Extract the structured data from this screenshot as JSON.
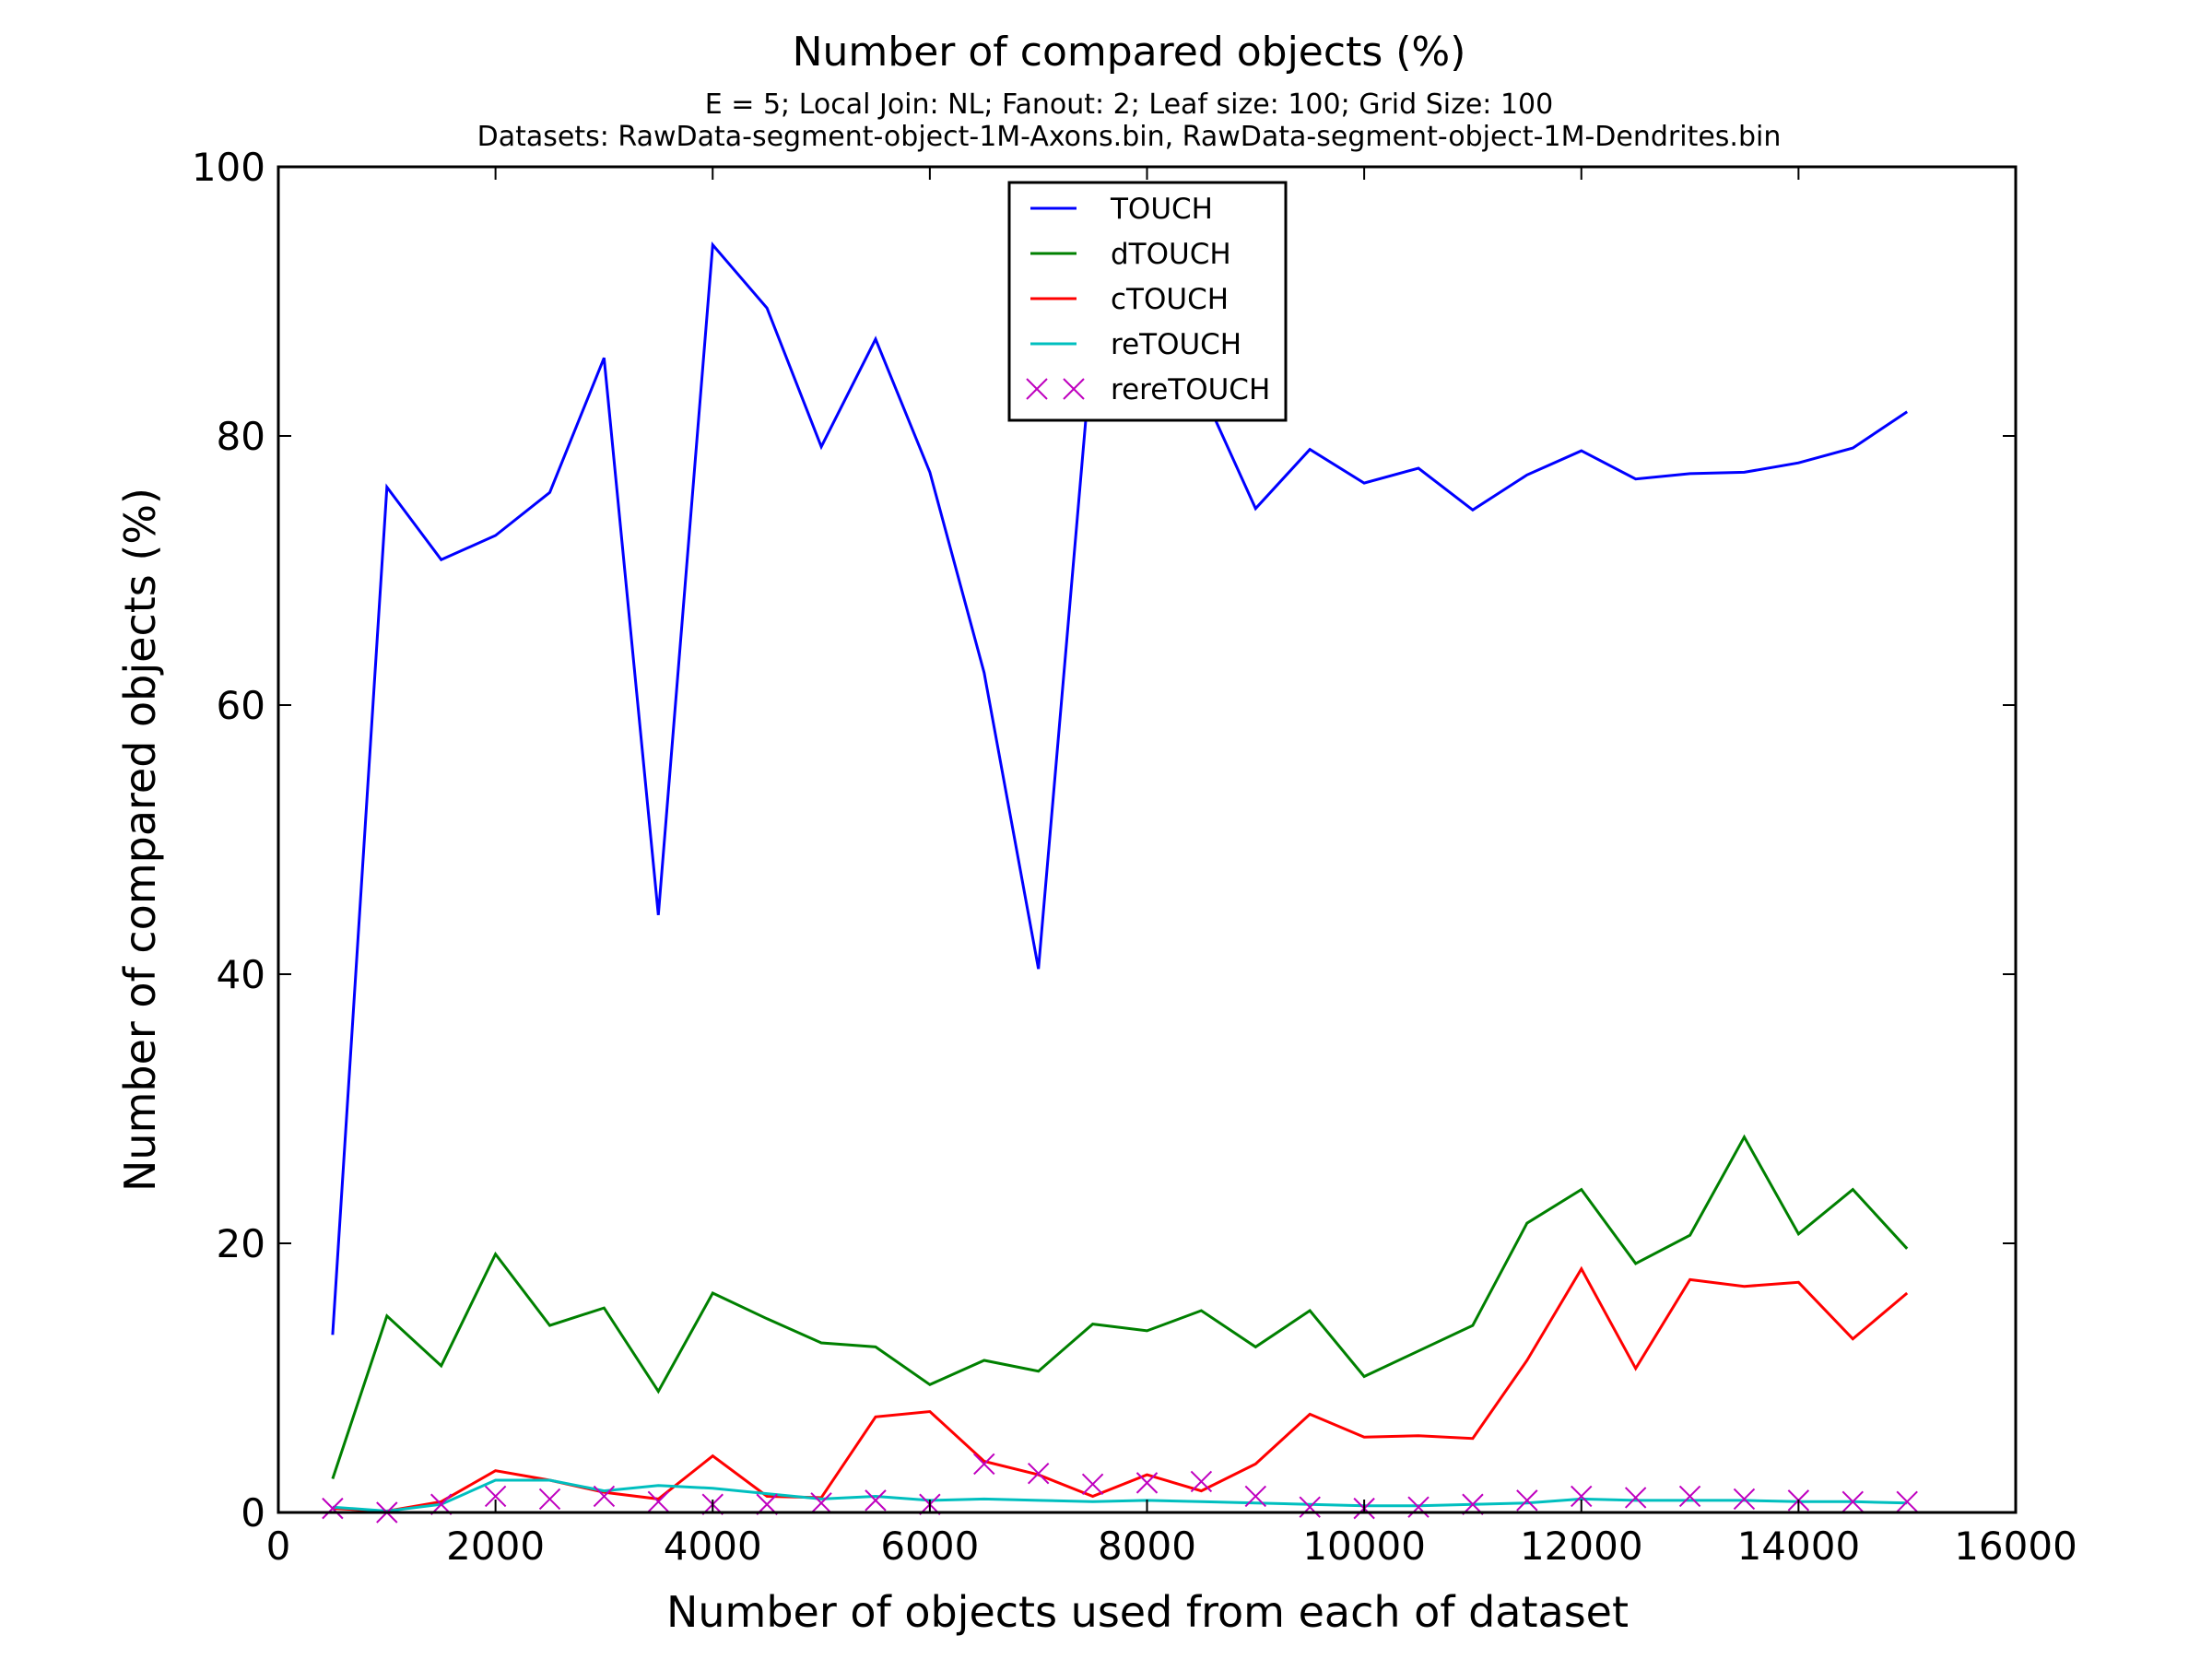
{
  "chart_data": {
    "type": "line",
    "title": "Number of compared objects (%)",
    "subtitle_line1": "E = 5; Local Join: NL; Fanout: 2; Leaf size: 100; Grid Size: 100",
    "subtitle_line2": "Datasets: RawData-segment-object-1M-Axons.bin, RawData-segment-object-1M-Dendrites.bin",
    "xlabel": "Number of objects used from each of dataset",
    "ylabel": "Number of compared objects (%)",
    "xlim": [
      0,
      16000
    ],
    "ylim": [
      0,
      100
    ],
    "xticks": [
      0,
      2000,
      4000,
      6000,
      8000,
      10000,
      12000,
      14000,
      16000
    ],
    "yticks": [
      0,
      20,
      40,
      60,
      80,
      100
    ],
    "grid": false,
    "legend_position": "upper-center",
    "x": [
      500,
      1000,
      1500,
      2000,
      2500,
      3000,
      3500,
      4000,
      4500,
      5000,
      5500,
      6000,
      6500,
      7000,
      7500,
      8000,
      8500,
      9000,
      9500,
      10000,
      10500,
      11000,
      11500,
      12000,
      12500,
      13000,
      13500,
      14000,
      14500,
      15000
    ],
    "series": [
      {
        "name": "TOUCH",
        "color": "#0000ff",
        "style": "line",
        "values": [
          13.2,
          76.2,
          70.8,
          72.6,
          75.8,
          85.8,
          44.4,
          94.2,
          89.5,
          79.2,
          87.2,
          77.3,
          62.4,
          40.4,
          87.2,
          85.5,
          83.5,
          74.6,
          79.0,
          76.5,
          77.6,
          74.5,
          77.1,
          78.9,
          76.8,
          77.2,
          77.3,
          78.0,
          79.1,
          81.8
        ]
      },
      {
        "name": "dTOUCH",
        "color": "#008000",
        "style": "line",
        "values": [
          2.5,
          14.6,
          10.9,
          19.2,
          13.9,
          15.2,
          9.0,
          16.3,
          14.4,
          12.6,
          12.3,
          9.5,
          11.3,
          10.5,
          14.0,
          13.5,
          15.0,
          12.3,
          15.0,
          10.1,
          12.0,
          13.9,
          21.5,
          24.0,
          18.5,
          20.6,
          27.9,
          20.7,
          24.0,
          19.6
        ]
      },
      {
        "name": "cTOUCH",
        "color": "#ff0000",
        "style": "line",
        "values": [
          0.3,
          0.1,
          0.8,
          3.1,
          2.4,
          1.5,
          1.0,
          4.2,
          1.2,
          1.1,
          7.1,
          7.5,
          3.8,
          2.8,
          1.2,
          2.8,
          1.6,
          3.6,
          7.3,
          5.6,
          5.7,
          5.5,
          11.3,
          18.1,
          10.7,
          17.3,
          16.8,
          17.1,
          12.9,
          16.3
        ]
      },
      {
        "name": "reTOUCH",
        "color": "#00bfbf",
        "style": "line",
        "values": [
          0.4,
          0.1,
          0.6,
          2.4,
          2.4,
          1.6,
          2.0,
          1.8,
          1.4,
          1.0,
          1.2,
          0.9,
          1.0,
          0.9,
          0.8,
          0.9,
          0.8,
          0.7,
          0.6,
          0.5,
          0.5,
          0.6,
          0.7,
          1.0,
          0.9,
          0.9,
          0.9,
          0.8,
          0.8,
          0.7
        ]
      },
      {
        "name": "rereTOUCH",
        "color": "#bf00bf",
        "style": "marker-x",
        "values": [
          0.3,
          0.0,
          0.6,
          1.2,
          1.0,
          1.2,
          0.8,
          0.6,
          0.6,
          0.7,
          0.9,
          0.6,
          3.6,
          2.9,
          2.1,
          2.2,
          2.3,
          1.2,
          0.4,
          0.3,
          0.4,
          0.6,
          0.9,
          1.2,
          1.1,
          1.2,
          1.0,
          0.9,
          0.8,
          0.8
        ]
      }
    ]
  }
}
